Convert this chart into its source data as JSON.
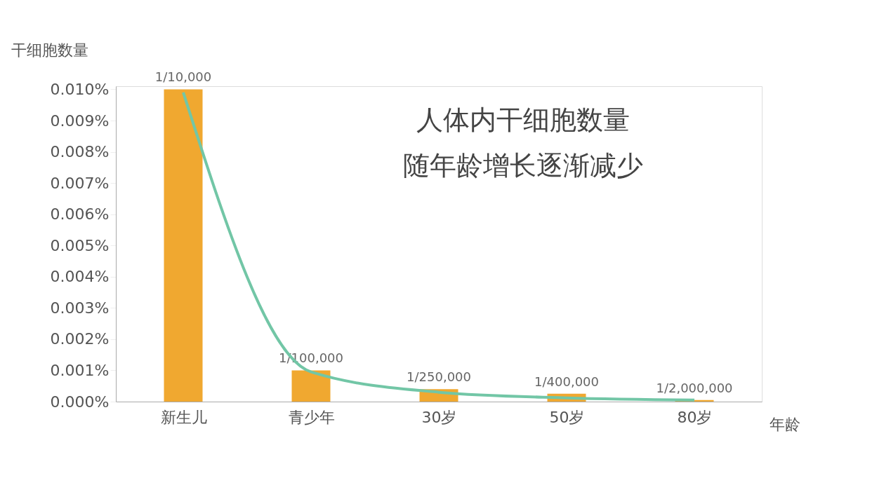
{
  "chart_data": {
    "type": "bar",
    "title": "人体内干细胞数量",
    "subtitle": "随年龄增长逐渐减少",
    "xlabel": "年龄",
    "ylabel": "干细胞数量",
    "categories": [
      "新生儿",
      "青少年",
      "30岁",
      "50岁",
      "80岁"
    ],
    "series": [
      {
        "color": "#f0a830",
        "values": [
          0.01,
          0.001,
          0.0004,
          0.00025,
          5e-05
        ],
        "value_labels": [
          "1/10,000",
          "1/100,000",
          "1/250,000",
          "1/400,000",
          "1/2,000,000"
        ]
      },
      {
        "type": "line",
        "color": "#72c6a6",
        "values": [
          0.0099,
          0.00095,
          0.0003,
          0.00012,
          5e-05
        ]
      }
    ],
    "ylim": [
      0,
      0.0101
    ],
    "yticks": [
      {
        "value": 0,
        "label": "0.000%"
      },
      {
        "value": 0.001,
        "label": "0.001%"
      },
      {
        "value": 0.002,
        "label": "0.002%"
      },
      {
        "value": 0.003,
        "label": "0.003%"
      },
      {
        "value": 0.004,
        "label": "0.004%"
      },
      {
        "value": 0.005,
        "label": "0.005%"
      },
      {
        "value": 0.006,
        "label": "0.006%"
      },
      {
        "value": 0.007,
        "label": "0.007%"
      },
      {
        "value": 0.008,
        "label": "0.008%"
      },
      {
        "value": 0.009,
        "label": "0.009%"
      },
      {
        "value": 0.01,
        "label": "0.010%"
      }
    ],
    "grid": false
  }
}
